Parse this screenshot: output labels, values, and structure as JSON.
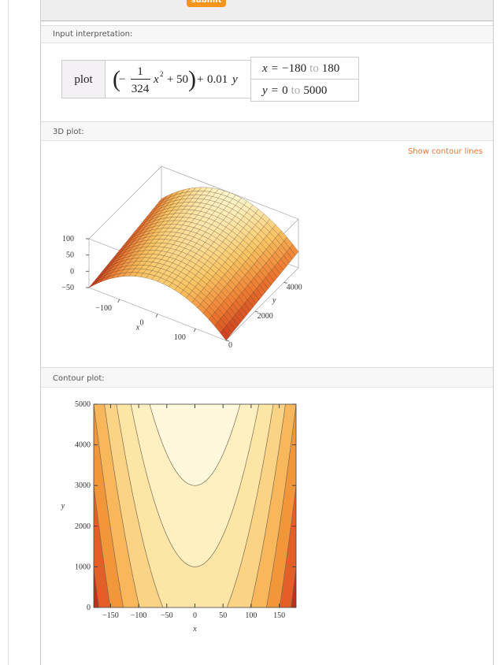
{
  "header": {
    "button": "submit"
  },
  "input_interpretation": {
    "title": "Input interpretation:",
    "command": "plot",
    "formula": {
      "open": "(",
      "minus": "−",
      "numerator": 1,
      "denominator": 324,
      "variable_x": "x",
      "exponent": 2,
      "plus_1": "+",
      "constant": 50,
      "close": ")",
      "plus_2": "+",
      "y_coefficient": 0.01,
      "variable_y": "y"
    },
    "ranges": {
      "x_var": "x",
      "equals": "=",
      "x_min": {
        "value": -180,
        "label": "−180"
      },
      "to": "to",
      "x_max": 180,
      "y_var": "y",
      "y_min": 0,
      "y_max": 5000
    }
  },
  "plot_3d": {
    "title": "3D plot:",
    "link": "Show contour lines"
  },
  "contour_plot": {
    "title": "Contour plot:"
  },
  "chart_data": [
    {
      "type": "surface",
      "xlabel": "x",
      "ylabel": "y",
      "xlim": [
        -180,
        180
      ],
      "ylim": [
        0,
        5000
      ],
      "zlim": [
        -50,
        100
      ],
      "xticks": [
        {
          "value": -100,
          "label": "−100"
        },
        0,
        100
      ],
      "yticks": [
        0,
        2000,
        4000
      ],
      "zticks": [
        {
          "value": -50,
          "label": "−50"
        },
        0,
        50,
        100
      ]
    },
    {
      "type": "contour",
      "xlabel": "x",
      "ylabel": "y",
      "xlim": [
        -180,
        180
      ],
      "ylim": [
        0,
        5000
      ],
      "xticks": [
        {
          "value": -150,
          "label": "−150"
        },
        {
          "value": -100,
          "label": "−100"
        },
        {
          "value": -50,
          "label": "−50"
        },
        0,
        50,
        100,
        150
      ],
      "yticks": [
        0,
        1000,
        2000,
        3000,
        4000,
        5000
      ],
      "contour_levels": [
        -40,
        -20,
        0,
        20,
        40,
        60,
        80
      ],
      "colors": [
        "#b9321b",
        "#e45f28",
        "#f2963a",
        "#f8b75a",
        "#fbd385",
        "#fde5a6",
        "#fef0c0",
        "#fff8dc"
      ]
    }
  ]
}
